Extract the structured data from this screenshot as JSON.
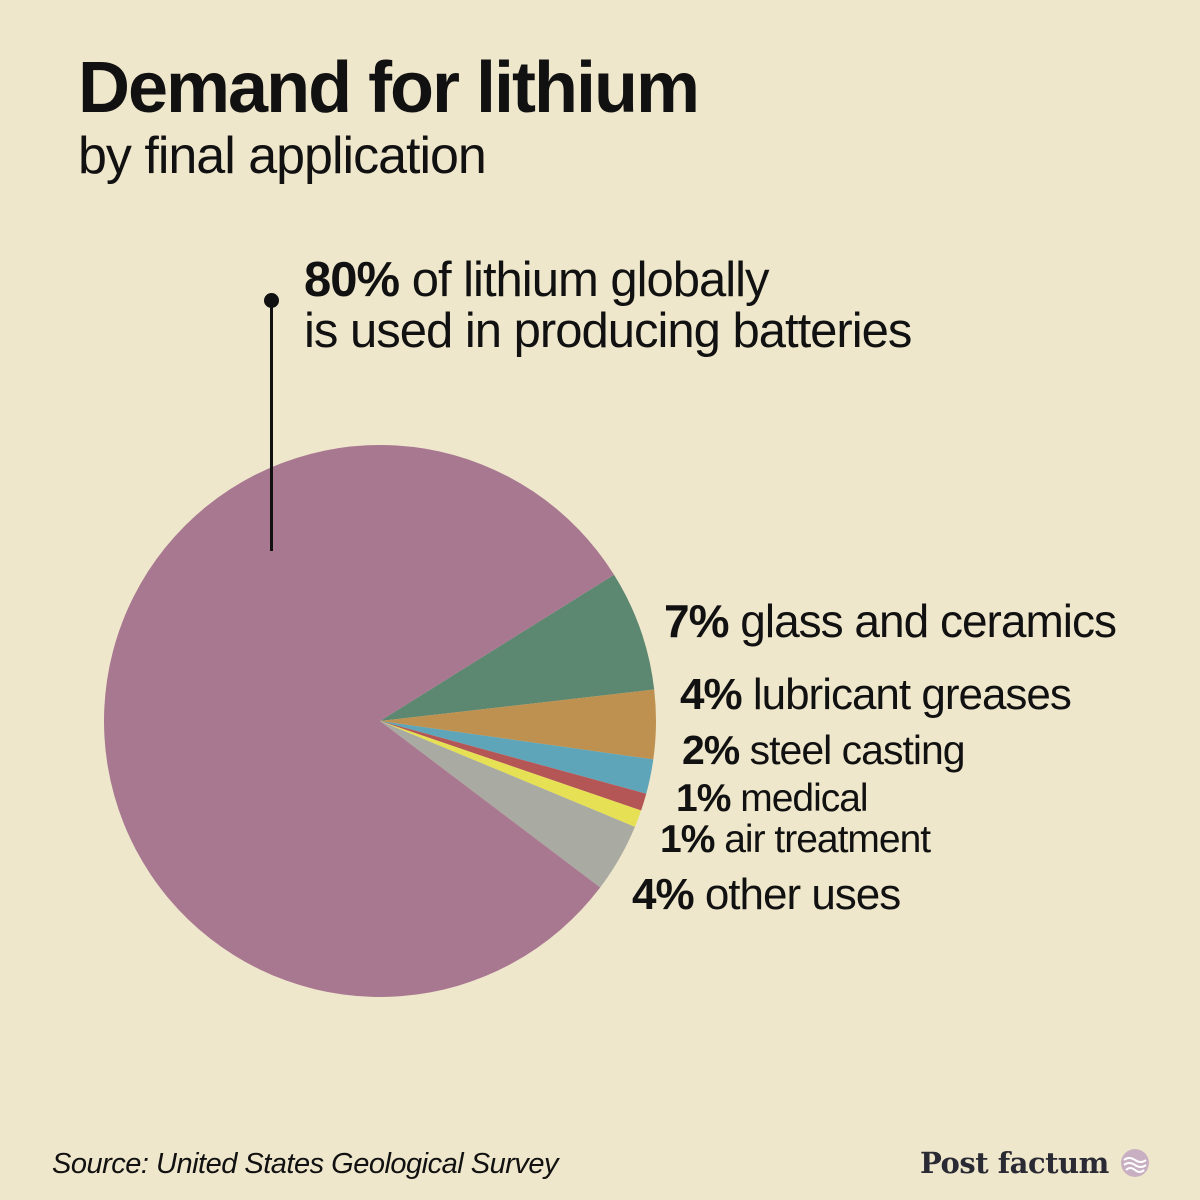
{
  "title": "Demand for lithium",
  "subtitle": "by final application",
  "callout": {
    "pct": "80%",
    "line1_rest": " of lithium globally",
    "line2": "is used in producing batteries"
  },
  "source": "Source: United States Geological Survey",
  "brand": "Post factum",
  "chart_data": {
    "type": "pie",
    "title": "Demand for lithium",
    "subtitle": "by final application",
    "slices": [
      {
        "label": "batteries",
        "pct_label": "80%",
        "value": 80,
        "color": "#a87891"
      },
      {
        "label": "glass and ceramics",
        "pct_label": "7%",
        "value": 7,
        "color": "#5c8770"
      },
      {
        "label": "lubricant greases",
        "pct_label": "4%",
        "value": 4,
        "color": "#be9150"
      },
      {
        "label": "steel casting",
        "pct_label": "2%",
        "value": 2,
        "color": "#5fa5b9"
      },
      {
        "label": "medical",
        "pct_label": "1%",
        "value": 1,
        "color": "#b55656"
      },
      {
        "label": "air treatment",
        "pct_label": "1%",
        "value": 1,
        "color": "#e6e154"
      },
      {
        "label": "other uses",
        "pct_label": "4%",
        "value": 4,
        "color": "#a9aaa1"
      }
    ]
  }
}
